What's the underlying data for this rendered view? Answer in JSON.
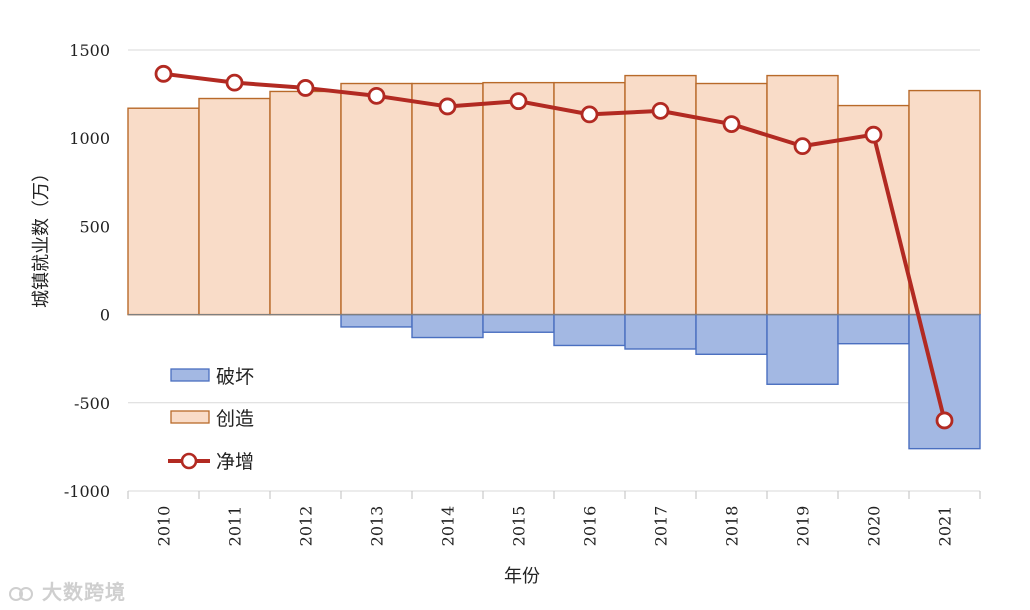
{
  "chart_data": {
    "type": "bar",
    "categories": [
      "2010",
      "2011",
      "2012",
      "2013",
      "2014",
      "2015",
      "2016",
      "2017",
      "2018",
      "2019",
      "2020",
      "2021"
    ],
    "series": [
      {
        "name": "创造",
        "kind": "bar",
        "color": "#f9dcc8",
        "stroke": "#b86a2a",
        "values": [
          1170,
          1225,
          1265,
          1310,
          1310,
          1315,
          1315,
          1355,
          1310,
          1355,
          1185,
          1270
        ]
      },
      {
        "name": "破坏",
        "kind": "bar",
        "color": "#a3b8e3",
        "stroke": "#4a6fc0",
        "values": [
          0,
          0,
          0,
          -70,
          -130,
          -100,
          -175,
          -195,
          -225,
          -395,
          -165,
          -760
        ]
      },
      {
        "name": "净增",
        "kind": "line",
        "color": "#b22a22",
        "values": [
          1365,
          1315,
          1285,
          1240,
          1180,
          1210,
          1135,
          1155,
          1080,
          955,
          1020,
          -600
        ]
      }
    ],
    "xlabel": "年份",
    "ylabel": "城镇就业数（万）",
    "ylim": [
      -1000,
      1500
    ],
    "yticks": [
      "1500",
      "1000",
      "500",
      "0",
      "-500",
      "-1000"
    ],
    "ytick_values": [
      1500,
      1000,
      500,
      0,
      -500,
      -1000
    ],
    "grid": true,
    "legend_position": "bottom-left"
  },
  "watermark": "大数跨境"
}
